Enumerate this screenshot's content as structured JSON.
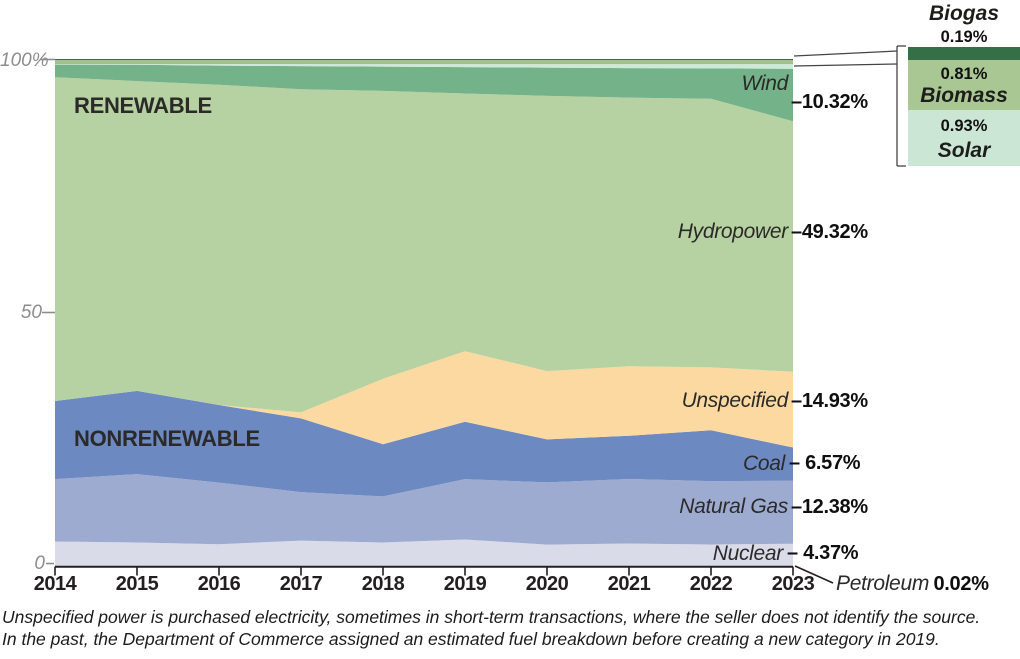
{
  "annotations": {
    "renewable": "RENEWABLE",
    "nonrenewable": "NONRENEWABLE"
  },
  "right_labels": {
    "wind": {
      "name": "Wind",
      "value": "–10.32%"
    },
    "hydropower": {
      "name": "Hydropower",
      "value": "–49.32%"
    },
    "unspecified": {
      "name": "Unspecified",
      "value": "–14.93%"
    },
    "coal": {
      "name": "Coal",
      "value": "– 6.57%"
    },
    "natural_gas": {
      "name": "Natural Gas",
      "value": "–12.38%"
    },
    "nuclear": {
      "name": "Nuclear",
      "value": "– 4.37%"
    },
    "petroleum": {
      "name": "Petroleum",
      "value": "0.02%"
    }
  },
  "legend": {
    "biogas_title": "Biogas",
    "biogas_value": "0.19%",
    "biogas_color": "#356f47",
    "biomass_value": "0.81%",
    "biomass_label": "Biomass",
    "biomass_color": "#a9c793",
    "solar_value": "0.93%",
    "solar_label": "Solar",
    "solar_color": "#cbe6d4"
  },
  "footnote": {
    "line1": "Unspecified power is purchased electricity, sometimes in short-term transactions, where the seller does not identify the source.",
    "line2": "In the past, the Department of Commerce assigned an estimated fuel breakdown before creating a new category in 2019."
  },
  "chart_data": {
    "type": "area",
    "stacked": true,
    "x": [
      2014,
      2015,
      2016,
      2017,
      2018,
      2019,
      2020,
      2021,
      2022,
      2023
    ],
    "ylim": [
      0,
      100
    ],
    "yticks": [
      "100%",
      "50",
      "0"
    ],
    "grid": false,
    "legend_position": "top-right",
    "series": [
      {
        "name": "Petroleum",
        "color": "#c9cde1",
        "values": [
          0.03,
          0.03,
          0.03,
          0.03,
          0.03,
          0.03,
          0.03,
          0.03,
          0.03,
          0.02
        ]
      },
      {
        "name": "Nuclear",
        "color": "#d9dbe9",
        "values": [
          4.8,
          4.6,
          4.3,
          5.0,
          4.6,
          5.2,
          4.2,
          4.4,
          4.2,
          4.37
        ]
      },
      {
        "name": "Natural Gas",
        "color": "#9dabd0",
        "values": [
          12.3,
          13.5,
          12.2,
          9.6,
          9.1,
          11.9,
          12.3,
          12.7,
          12.5,
          12.38
        ]
      },
      {
        "name": "Coal",
        "color": "#6d89c1",
        "values": [
          15.4,
          16.4,
          15.4,
          14.6,
          10.3,
          11.3,
          8.5,
          8.5,
          10.0,
          6.57
        ]
      },
      {
        "name": "Unspecified",
        "color": "#fcd9a0",
        "values": [
          0,
          0,
          0,
          1.2,
          12.9,
          13.9,
          13.5,
          13.7,
          12.4,
          14.93
        ]
      },
      {
        "name": "Hydropower",
        "color": "#b7d2a2",
        "values": [
          63.8,
          61.1,
          63.5,
          64.0,
          56.8,
          50.8,
          54.4,
          52.9,
          52.9,
          49.32
        ]
      },
      {
        "name": "Wind",
        "color": "#74b389",
        "values": [
          2.5,
          3.2,
          3.8,
          4.6,
          4.8,
          5.2,
          5.6,
          5.8,
          6.0,
          10.32
        ]
      },
      {
        "name": "Solar",
        "color": "#cfe9d8",
        "values": [
          0.1,
          0.15,
          0.3,
          0.4,
          0.5,
          0.6,
          0.7,
          0.8,
          0.85,
          0.93
        ]
      },
      {
        "name": "Biomass",
        "color": "#a0c28e",
        "values": [
          0.8,
          0.8,
          0.8,
          0.8,
          0.8,
          0.8,
          0.8,
          0.8,
          0.8,
          0.81
        ]
      },
      {
        "name": "Biogas",
        "color": "#356f47",
        "values": [
          0.2,
          0.2,
          0.2,
          0.2,
          0.2,
          0.2,
          0.2,
          0.2,
          0.2,
          0.19
        ]
      }
    ]
  }
}
